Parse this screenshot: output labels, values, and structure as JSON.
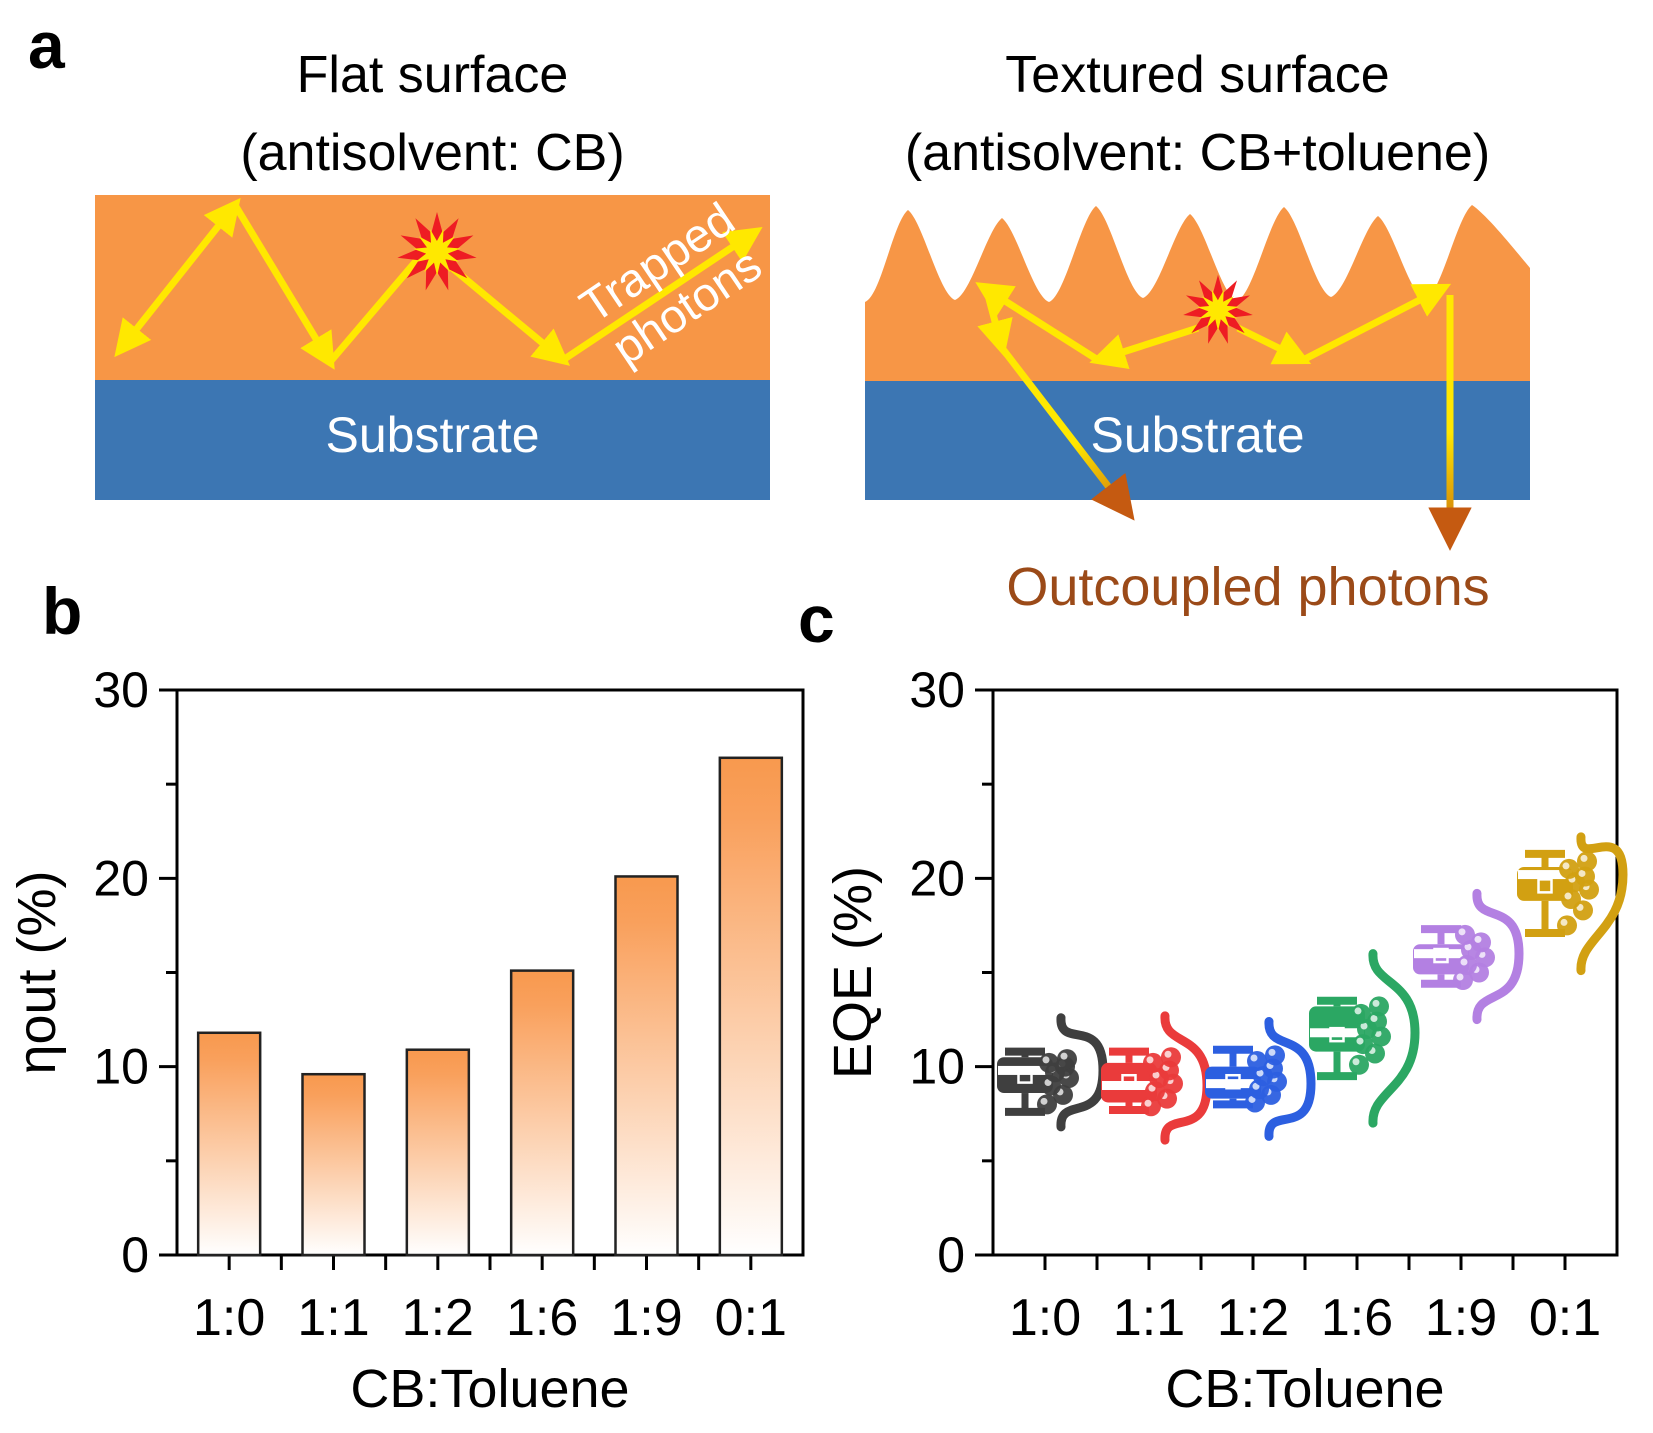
{
  "figure": {
    "panel_labels": {
      "a": "a",
      "b": "b",
      "c": "c"
    },
    "panel_a": {
      "left": {
        "title_line1": "Flat surface",
        "title_line2": "(antisolvent: CB)",
        "substrate": "Substrate",
        "annotation_line1": "Trapped",
        "annotation_line2": "photons"
      },
      "right": {
        "title_line1": "Textured  surface",
        "title_line2": "(antisolvent: CB+toluene)",
        "substrate": "Substrate",
        "annotation": "Outcoupled photons"
      },
      "colors": {
        "film_orange": "#F79646",
        "substrate_blue": "#3C76B3",
        "photon_yellow": "#FFE800",
        "star_red": "#EE1C23",
        "star_core_yellow": "#FFE800",
        "outcoupled_text": "#9B4A18",
        "outcoupled_arrow": "#C55A11"
      }
    }
  },
  "chart_data": [
    {
      "type": "bar",
      "panel": "b",
      "categories": [
        "1:0",
        "1:1",
        "1:2",
        "1:6",
        "1:9",
        "0:1"
      ],
      "values": [
        11.8,
        9.6,
        10.9,
        15.1,
        20.1,
        26.4
      ],
      "xlabel": "CB:Toluene",
      "ylabel": "ηout (%)",
      "ylim": [
        0,
        30
      ],
      "yticks": [
        0,
        10,
        20,
        30
      ],
      "yticks_minor": [
        5,
        15,
        25
      ],
      "grid": false,
      "legend": "none",
      "bar_top_color": "#F8994E",
      "bar_bottom_color": "#FFFFFF",
      "bar_outline_color": "#222222"
    },
    {
      "type": "box",
      "panel": "c",
      "categories": [
        "1:0",
        "1:1",
        "1:2",
        "1:6",
        "1:9",
        "0:1"
      ],
      "xlabel": "CB:Toluene",
      "ylabel": "EQE (%)",
      "ylim": [
        0,
        30
      ],
      "yticks": [
        0,
        10,
        20,
        30
      ],
      "yticks_minor": [
        5,
        15,
        25
      ],
      "grid": false,
      "legend": "none",
      "series": [
        {
          "name": "1:0",
          "color": "#3F3F3F",
          "whisker_low": 7.6,
          "q1": 8.6,
          "median": 9.8,
          "q3": 10.5,
          "whisker_high": 10.8,
          "mean": 9.5,
          "violin_range": [
            6.8,
            12.6
          ],
          "points": [
            8.0,
            8.5,
            9.0,
            9.4,
            9.7,
            10.0,
            10.2,
            10.4
          ]
        },
        {
          "name": "1:1",
          "color": "#EA3B3B",
          "whisker_low": 7.7,
          "q1": 8.1,
          "median": 9.0,
          "q3": 10.2,
          "whisker_high": 10.8,
          "mean": 9.2,
          "violin_range": [
            6.1,
            12.7
          ],
          "points": [
            7.9,
            8.3,
            8.7,
            9.1,
            9.4,
            9.8,
            10.2,
            10.5
          ]
        },
        {
          "name": "1:2",
          "color": "#2C5FE0",
          "whisker_low": 8.0,
          "q1": 8.3,
          "median": 9.1,
          "q3": 10.0,
          "whisker_high": 10.9,
          "mean": 9.2,
          "violin_range": [
            6.3,
            12.4
          ],
          "points": [
            8.1,
            8.5,
            8.8,
            9.2,
            9.5,
            9.9,
            10.3,
            10.6
          ]
        },
        {
          "name": "1:6",
          "color": "#2BA763",
          "whisker_low": 9.5,
          "q1": 10.8,
          "median": 11.8,
          "q3": 13.2,
          "whisker_high": 13.5,
          "mean": 11.7,
          "violin_range": [
            7.0,
            16.0
          ],
          "points": [
            10.1,
            10.7,
            11.2,
            11.6,
            12.0,
            12.4,
            12.8,
            13.2
          ]
        },
        {
          "name": "1:9",
          "color": "#B380E2",
          "whisker_low": 14.4,
          "q1": 14.9,
          "median": 16.0,
          "q3": 16.5,
          "whisker_high": 17.3,
          "mean": 15.9,
          "violin_range": [
            12.5,
            19.2
          ],
          "points": [
            14.6,
            15.0,
            15.4,
            15.8,
            16.2,
            16.6,
            17.0
          ]
        },
        {
          "name": "0:1",
          "color": "#D2A012",
          "whisker_low": 17.1,
          "q1": 18.8,
          "median": 20.2,
          "q3": 20.6,
          "whisker_high": 21.3,
          "mean": 19.6,
          "violin_range": [
            15.1,
            22.2
          ],
          "points": [
            17.5,
            18.3,
            18.9,
            19.4,
            19.8,
            20.1,
            20.5,
            20.9
          ]
        }
      ]
    }
  ]
}
